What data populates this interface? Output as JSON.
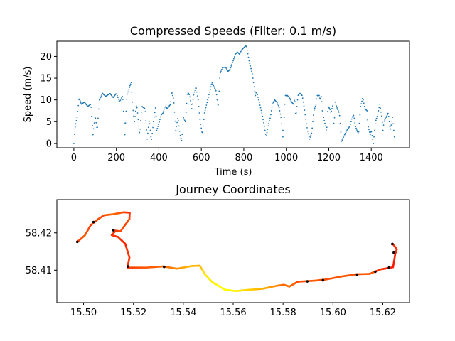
{
  "chart_data": [
    {
      "type": "scatter",
      "title": "Compressed Speeds (Filter: 0.1 m/s)",
      "xlabel": "Time (s)",
      "ylabel": "Speed (m/s)",
      "xlim": [
        -80,
        1580
      ],
      "ylim": [
        -1,
        23.5
      ],
      "xticks": [
        0,
        200,
        400,
        600,
        800,
        1000,
        1200,
        1400
      ],
      "yticks": [
        0,
        5,
        10,
        15,
        20
      ],
      "marker_color": "#1f77b4",
      "grid": false,
      "profile": [
        [
          0,
          0
        ],
        [
          5,
          3.5
        ],
        [
          15,
          6
        ],
        [
          25,
          10.5
        ],
        [
          35,
          9
        ],
        [
          50,
          9.5
        ],
        [
          65,
          8.5
        ],
        [
          80,
          9
        ],
        [
          90,
          2
        ],
        [
          100,
          6.5
        ],
        [
          110,
          3
        ],
        [
          120,
          10
        ],
        [
          135,
          11.5
        ],
        [
          150,
          10.8
        ],
        [
          170,
          11.5
        ],
        [
          185,
          10.5
        ],
        [
          200,
          11.5
        ],
        [
          215,
          9.5
        ],
        [
          230,
          11
        ],
        [
          240,
          2
        ],
        [
          250,
          11
        ],
        [
          262,
          13
        ],
        [
          270,
          14
        ],
        [
          278,
          8
        ],
        [
          285,
          5
        ],
        [
          295,
          9
        ],
        [
          300,
          7
        ],
        [
          310,
          2
        ],
        [
          320,
          8.5
        ],
        [
          335,
          8
        ],
        [
          345,
          1
        ],
        [
          355,
          5.5
        ],
        [
          365,
          0.5
        ],
        [
          375,
          5
        ],
        [
          385,
          8.5
        ],
        [
          390,
          3
        ],
        [
          400,
          4.5
        ],
        [
          410,
          6.5
        ],
        [
          420,
          7
        ],
        [
          430,
          8.5
        ],
        [
          440,
          8
        ],
        [
          455,
          9
        ],
        [
          460,
          12
        ],
        [
          470,
          10
        ],
        [
          480,
          3
        ],
        [
          490,
          6
        ],
        [
          500,
          2
        ],
        [
          508,
          0.5
        ],
        [
          515,
          6
        ],
        [
          525,
          5
        ],
        [
          535,
          12
        ],
        [
          545,
          11
        ],
        [
          555,
          8
        ],
        [
          565,
          11.5
        ],
        [
          575,
          13
        ],
        [
          585,
          10
        ],
        [
          595,
          5
        ],
        [
          605,
          2
        ],
        [
          615,
          7
        ],
        [
          625,
          9
        ],
        [
          635,
          11
        ],
        [
          645,
          13
        ],
        [
          650,
          14
        ],
        [
          660,
          13
        ],
        [
          670,
          12
        ],
        [
          680,
          8
        ],
        [
          688,
          16
        ],
        [
          700,
          17.5
        ],
        [
          715,
          17.5
        ],
        [
          725,
          16.5
        ],
        [
          735,
          17
        ],
        [
          750,
          19
        ],
        [
          760,
          20.5
        ],
        [
          770,
          21
        ],
        [
          780,
          20.5
        ],
        [
          790,
          21.5
        ],
        [
          800,
          22
        ],
        [
          812,
          22.5
        ],
        [
          825,
          19
        ],
        [
          840,
          16
        ],
        [
          855,
          11
        ],
        [
          860,
          12
        ],
        [
          875,
          9
        ],
        [
          885,
          7
        ],
        [
          895,
          4.5
        ],
        [
          905,
          1.5
        ],
        [
          915,
          4
        ],
        [
          925,
          6
        ],
        [
          935,
          9
        ],
        [
          945,
          10
        ],
        [
          955,
          9.5
        ],
        [
          965,
          8.5
        ],
        [
          975,
          6
        ],
        [
          985,
          1
        ],
        [
          995,
          11
        ],
        [
          1005,
          11
        ],
        [
          1015,
          10.5
        ],
        [
          1025,
          9.5
        ],
        [
          1035,
          9
        ],
        [
          1040,
          10.5
        ],
        [
          1045,
          6
        ],
        [
          1055,
          11
        ],
        [
          1065,
          11.5
        ],
        [
          1075,
          11
        ],
        [
          1085,
          8
        ],
        [
          1095,
          4.5
        ],
        [
          1100,
          3
        ],
        [
          1110,
          1
        ],
        [
          1120,
          2.5
        ],
        [
          1130,
          7.5
        ],
        [
          1140,
          9
        ],
        [
          1145,
          11
        ],
        [
          1155,
          11
        ],
        [
          1160,
          10
        ],
        [
          1165,
          11
        ],
        [
          1170,
          7.5
        ],
        [
          1180,
          5
        ],
        [
          1185,
          4
        ],
        [
          1190,
          2.5
        ],
        [
          1195,
          8.5
        ],
        [
          1205,
          8
        ],
        [
          1210,
          7
        ],
        [
          1220,
          9
        ],
        [
          1225,
          3.5
        ],
        [
          1230,
          9.5
        ],
        [
          1240,
          8
        ],
        [
          1250,
          7
        ],
        [
          1255,
          4
        ],
        [
          1260,
          0.5
        ],
        [
          1265,
          1
        ],
        [
          1275,
          2
        ],
        [
          1285,
          3
        ],
        [
          1300,
          4
        ],
        [
          1310,
          6
        ],
        [
          1318,
          6.5
        ],
        [
          1325,
          4
        ],
        [
          1340,
          2
        ],
        [
          1350,
          8.5
        ],
        [
          1360,
          10.5
        ],
        [
          1370,
          8
        ],
        [
          1380,
          7.5
        ],
        [
          1385,
          4
        ],
        [
          1395,
          2
        ],
        [
          1400,
          3
        ],
        [
          1410,
          0
        ],
        [
          1420,
          5
        ],
        [
          1430,
          6.5
        ],
        [
          1440,
          9
        ],
        [
          1450,
          6
        ],
        [
          1455,
          3
        ],
        [
          1460,
          5
        ],
        [
          1470,
          6
        ],
        [
          1480,
          7
        ],
        [
          1490,
          3
        ],
        [
          1500,
          6
        ],
        [
          1510,
          1
        ]
      ]
    },
    {
      "type": "line",
      "title": "Journey Coordinates",
      "xlabel": "",
      "ylabel": "",
      "xlim": [
        15.4893,
        15.6307
      ],
      "ylim": [
        58.4013,
        58.4289
      ],
      "xticks": [
        15.5,
        15.52,
        15.54,
        15.56,
        15.58,
        15.6,
        15.62
      ],
      "yticks": [
        58.41,
        58.42
      ],
      "xtick_labels": [
        "15.50",
        "15.52",
        "15.54",
        "15.56",
        "15.58",
        "15.60",
        "15.62"
      ],
      "ytick_labels": [
        "58.41",
        "58.42"
      ],
      "colormap": "autumn (red = slow, yellow = fast)",
      "grid": false,
      "route": [
        [
          15.4975,
          58.4176,
          0.2
        ],
        [
          15.5005,
          58.4193,
          0.35
        ],
        [
          15.5028,
          58.422,
          0.25
        ],
        [
          15.5057,
          58.4236,
          0.3
        ],
        [
          15.5082,
          58.4247,
          0.3
        ],
        [
          15.512,
          58.425,
          0.4
        ],
        [
          15.5159,
          58.4255,
          0.3
        ],
        [
          15.5185,
          58.4254,
          0.15
        ],
        [
          15.5184,
          58.4237,
          0.25
        ],
        [
          15.5148,
          58.4204,
          0.3
        ],
        [
          15.5129,
          58.4206,
          0.25
        ],
        [
          15.5113,
          58.4194,
          0.2
        ],
        [
          15.5138,
          58.4189,
          0.2
        ],
        [
          15.5167,
          58.4171,
          0.15
        ],
        [
          15.5184,
          58.4134,
          0.2
        ],
        [
          15.5176,
          58.4107,
          0.2
        ],
        [
          15.5254,
          58.4107,
          0.35
        ],
        [
          15.5319,
          58.411,
          0.4
        ],
        [
          15.5375,
          58.4104,
          0.55
        ],
        [
          15.5433,
          58.4111,
          0.75
        ],
        [
          15.5466,
          58.4112,
          0.7
        ],
        [
          15.5488,
          58.4088,
          0.9
        ],
        [
          15.5516,
          58.4068,
          0.95
        ],
        [
          15.5566,
          58.4048,
          1.0
        ],
        [
          15.5611,
          58.4044,
          0.95
        ],
        [
          15.5654,
          58.4047,
          0.85
        ],
        [
          15.5716,
          58.405,
          0.7
        ],
        [
          15.5774,
          58.4058,
          0.55
        ],
        [
          15.5803,
          58.4061,
          0.4
        ],
        [
          15.5825,
          58.4056,
          0.45
        ],
        [
          15.5859,
          58.4069,
          0.3
        ],
        [
          15.5929,
          58.4072,
          0.35
        ],
        [
          15.5971,
          58.4075,
          0.3
        ],
        [
          15.6034,
          58.4083,
          0.35
        ],
        [
          15.6093,
          58.4089,
          0.3
        ],
        [
          15.6147,
          58.409,
          0.35
        ],
        [
          15.619,
          58.4102,
          0.2
        ],
        [
          15.6241,
          58.4108,
          0.1
        ],
        [
          15.625,
          58.4144,
          0.15
        ],
        [
          15.6256,
          58.4156,
          0.2
        ],
        [
          15.624,
          58.4171,
          0.15
        ]
      ],
      "stop_markers": [
        [
          15.4975,
          58.4176
        ],
        [
          15.504,
          58.4229
        ],
        [
          15.512,
          58.4207
        ],
        [
          15.5178,
          58.411
        ],
        [
          15.5323,
          58.4109
        ],
        [
          15.5897,
          58.407
        ],
        [
          15.596,
          58.4073
        ],
        [
          15.6097,
          58.4088
        ],
        [
          15.617,
          58.4096
        ],
        [
          15.6225,
          58.4107
        ],
        [
          15.6244,
          58.4147
        ],
        [
          15.6238,
          58.417
        ]
      ]
    }
  ]
}
